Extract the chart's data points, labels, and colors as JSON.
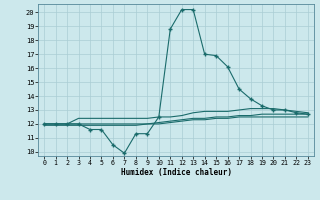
{
  "title": "",
  "xlabel": "Humidex (Indice chaleur)",
  "bg_color": "#cce8ec",
  "grid_color": "#aacdd4",
  "line_color": "#1a6b6b",
  "x_ticks": [
    0,
    1,
    2,
    3,
    4,
    5,
    6,
    7,
    8,
    9,
    10,
    11,
    12,
    13,
    14,
    15,
    16,
    17,
    18,
    19,
    20,
    21,
    22,
    23
  ],
  "y_ticks": [
    10,
    11,
    12,
    13,
    14,
    15,
    16,
    17,
    18,
    19,
    20
  ],
  "ylim": [
    9.7,
    20.6
  ],
  "xlim": [
    -0.5,
    23.5
  ],
  "series": [
    {
      "x": [
        0,
        1,
        2,
        3,
        4,
        5,
        6,
        7,
        8,
        9,
        10,
        11,
        12,
        13,
        14,
        15,
        16,
        17,
        18,
        19,
        20,
        21,
        22,
        23
      ],
      "y": [
        12,
        12,
        12,
        12,
        11.6,
        11.6,
        10.5,
        9.9,
        11.3,
        11.3,
        12.5,
        18.8,
        20.2,
        20.2,
        17.0,
        16.9,
        16.1,
        14.5,
        13.8,
        13.3,
        13.0,
        13.0,
        12.8,
        12.7
      ],
      "has_markers": true
    },
    {
      "x": [
        0,
        1,
        2,
        3,
        4,
        5,
        6,
        7,
        8,
        9,
        10,
        11,
        12,
        13,
        14,
        15,
        16,
        17,
        18,
        19,
        20,
        21,
        22,
        23
      ],
      "y": [
        12,
        12,
        12,
        12.4,
        12.4,
        12.4,
        12.4,
        12.4,
        12.4,
        12.4,
        12.5,
        12.5,
        12.6,
        12.8,
        12.9,
        12.9,
        12.9,
        13.0,
        13.1,
        13.1,
        13.1,
        13.0,
        12.9,
        12.8
      ],
      "has_markers": false
    },
    {
      "x": [
        0,
        1,
        2,
        3,
        4,
        5,
        6,
        7,
        8,
        9,
        10,
        11,
        12,
        13,
        14,
        15,
        16,
        17,
        18,
        19,
        20,
        21,
        22,
        23
      ],
      "y": [
        12,
        12,
        12,
        12,
        12,
        12,
        12,
        12,
        12,
        12,
        12.1,
        12.2,
        12.3,
        12.4,
        12.4,
        12.5,
        12.5,
        12.6,
        12.6,
        12.7,
        12.7,
        12.7,
        12.7,
        12.7
      ],
      "has_markers": false
    },
    {
      "x": [
        0,
        1,
        2,
        3,
        4,
        5,
        6,
        7,
        8,
        9,
        10,
        11,
        12,
        13,
        14,
        15,
        16,
        17,
        18,
        19,
        20,
        21,
        22,
        23
      ],
      "y": [
        11.9,
        11.9,
        11.9,
        11.9,
        11.9,
        11.9,
        11.9,
        11.9,
        11.9,
        12.0,
        12.0,
        12.1,
        12.2,
        12.3,
        12.3,
        12.4,
        12.4,
        12.5,
        12.5,
        12.5,
        12.5,
        12.5,
        12.5,
        12.5
      ],
      "has_markers": false
    }
  ]
}
